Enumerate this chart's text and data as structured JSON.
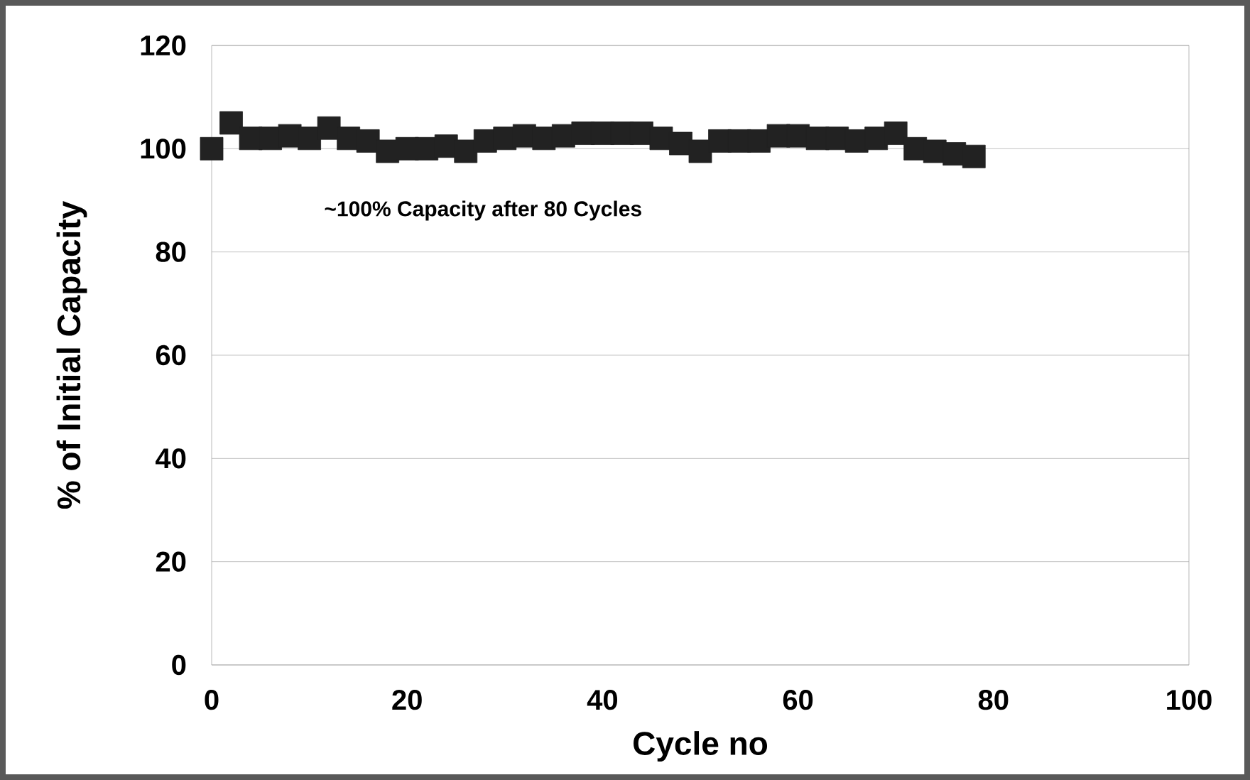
{
  "chart_data": {
    "type": "scatter",
    "xlabel": "Cycle no",
    "ylabel": "% of Initial Capacity",
    "annotations": [
      "~100% Capacity after 80 Cycles"
    ],
    "x": [
      0,
      2,
      4,
      6,
      8,
      10,
      12,
      14,
      16,
      18,
      20,
      22,
      24,
      26,
      28,
      30,
      32,
      34,
      36,
      38,
      40,
      42,
      44,
      46,
      48,
      50,
      52,
      54,
      56,
      58,
      60,
      62,
      64,
      66,
      68,
      70,
      72,
      74,
      76,
      78
    ],
    "series": [
      {
        "color": "#222222",
        "values": [
          100,
          105,
          102,
          102,
          102.5,
          102,
          104,
          102,
          101.5,
          99.5,
          100,
          100,
          100.5,
          99.5,
          101.5,
          102,
          102.5,
          102,
          102.5,
          103,
          103,
          103,
          103,
          102,
          101,
          99.5,
          101.5,
          101.5,
          101.5,
          102.5,
          102.5,
          102,
          102,
          101.5,
          102,
          103,
          100,
          99.5,
          99,
          98.5
        ]
      }
    ],
    "xlim": [
      0,
      100
    ],
    "xticks": [
      0,
      20,
      40,
      60,
      80,
      100
    ],
    "ylim": [
      0,
      120
    ],
    "yticks": [
      0,
      20,
      40,
      60,
      80,
      100,
      120
    ],
    "grid": "y",
    "marker": "square"
  }
}
